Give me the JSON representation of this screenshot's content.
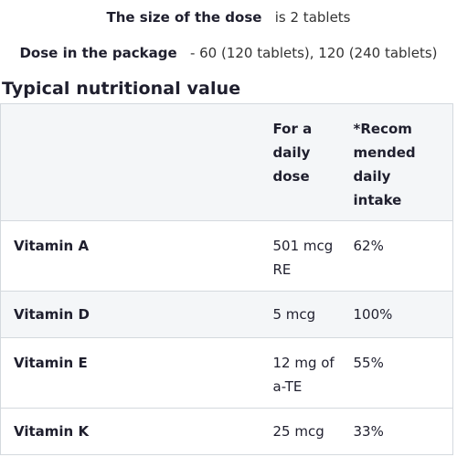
{
  "dose_size": {
    "label": "The size of the dose",
    "value": "is 2 tablets"
  },
  "dose_package": {
    "label": "Dose in the package",
    "value": "- 60 (120 tablets), 120 (240 tablets)"
  },
  "heading": "Typical nutritional value",
  "table": {
    "headers": {
      "name": "",
      "amount": "For a daily dose",
      "percent": "*Recom mended daily intake"
    },
    "rows": [
      {
        "name": "Vitamin A",
        "amount": "501 mcg RE",
        "percent": "62%"
      },
      {
        "name": "Vitamin D",
        "amount": "5 mcg",
        "percent": "100%"
      },
      {
        "name": "Vitamin E",
        "amount": "12 mg of a-TE",
        "percent": "55%"
      },
      {
        "name": "Vitamin K",
        "amount": "25 mcg",
        "percent": "33%"
      }
    ]
  }
}
